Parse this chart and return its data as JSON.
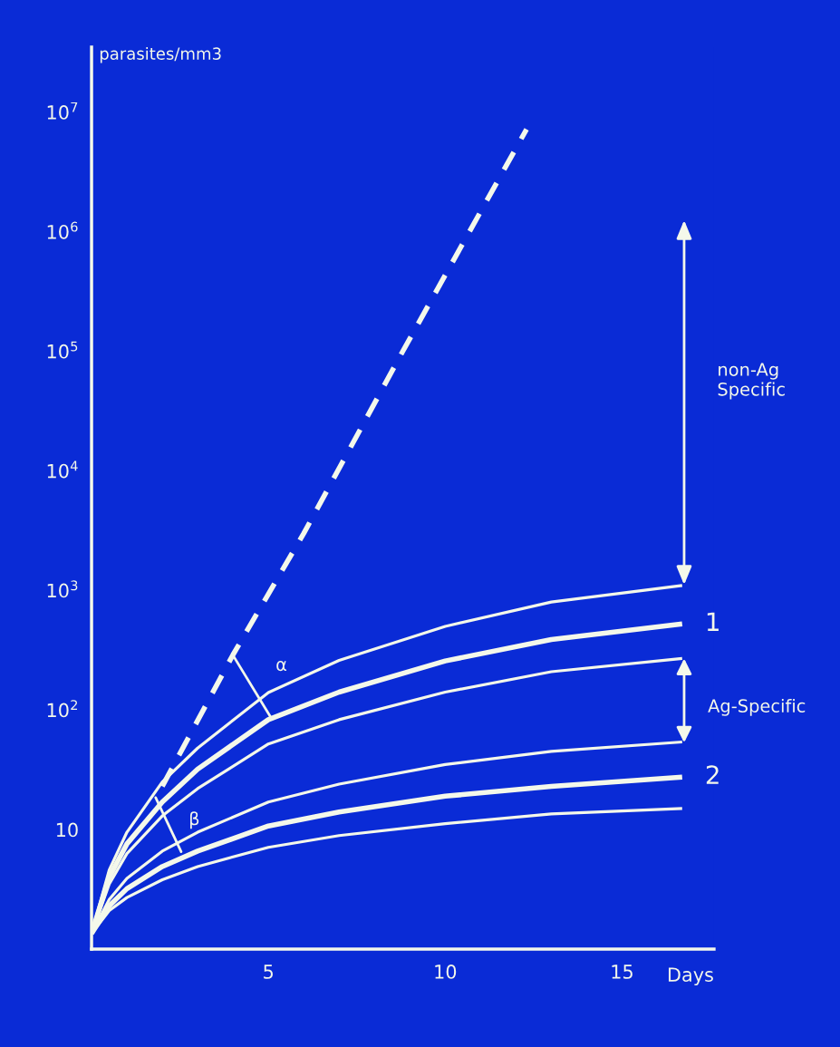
{
  "chart_data": {
    "type": "line",
    "ylabel": "parasites/mm3",
    "xlabel": "Days",
    "log": "y",
    "xlim": [
      0,
      17.6
    ],
    "ylim": [
      1,
      35000000
    ],
    "xticks": [
      5,
      10,
      15
    ],
    "yticks": [
      {
        "value": 10,
        "label": "10"
      },
      {
        "value": 100,
        "label": "10$^{2}$"
      },
      {
        "value": 1000,
        "label": "10$^{3}$"
      },
      {
        "value": 10000,
        "label": "10$^{4}$"
      },
      {
        "value": 100000,
        "label": "10$^{5}$"
      },
      {
        "value": 1000000,
        "label": "10$^{6}$"
      },
      {
        "value": 10000000,
        "label": "10$^{7}$"
      }
    ],
    "x": [
      0,
      0.5,
      1,
      2,
      3,
      5,
      7,
      10,
      13,
      16.7
    ],
    "series": [
      {
        "color": "#f4f8ea",
        "values": [
          1.35,
          4.6,
          9.5,
          25,
          48,
          140,
          260,
          500,
          800,
          1100
        ]
      },
      {
        "name": "1",
        "color": "#f4f8ea",
        "values": [
          1.35,
          4.0,
          7.6,
          17,
          32,
          83,
          141,
          257,
          389,
          525
        ]
      },
      {
        "color": "#f4f8ea",
        "values": [
          1.35,
          3.5,
          6.3,
          13,
          22,
          52,
          83,
          141,
          209,
          270
        ]
      },
      {
        "color": "#f4f8ea",
        "values": [
          1.35,
          2.6,
          3.9,
          6.6,
          9.5,
          17,
          24,
          35,
          45,
          54
        ]
      },
      {
        "name": "2",
        "color": "#f4f8ea",
        "values": [
          1.35,
          2.3,
          3.2,
          4.9,
          6.6,
          10.7,
          14,
          19,
          23,
          27.5
        ]
      },
      {
        "color": "#f4f8ea",
        "values": [
          1.35,
          2.1,
          2.7,
          3.8,
          4.9,
          7.1,
          8.9,
          11.2,
          13.5,
          15
        ]
      },
      {
        "color": "#f4f8ea",
        "line_style": "dashed",
        "x": [
          2,
          4,
          6,
          8.8,
          12.3
        ],
        "values": [
          23,
          290,
          3000,
          100000,
          7200000
        ]
      }
    ],
    "annotations": [
      "α",
      "β",
      "non-Ag Specific",
      "Ag-Specific"
    ]
  }
}
